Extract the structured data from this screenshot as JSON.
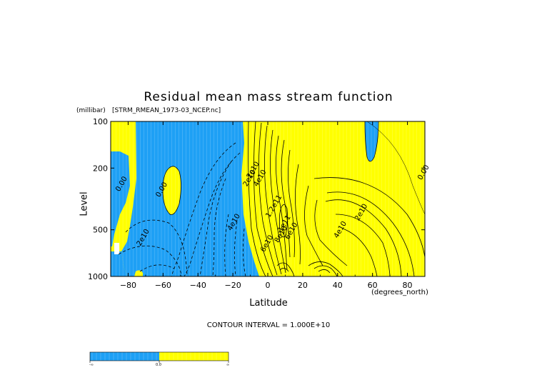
{
  "figure": {
    "title": "Residual mean mass stream function",
    "source_file": "[STRM_RMEAN_1973-03_NCEP.nc]",
    "y_units": "(millibar)",
    "y_label": "Level",
    "x_label": "Latitude",
    "x_units": "(degrees_north)",
    "contour_interval": "CONTOUR INTERVAL = 1.000E+10"
  },
  "colors": {
    "negative": "#1ea0f5",
    "positive": "#ffff00",
    "contour": "#000000",
    "background": "#ffffff"
  },
  "colorbar": {
    "labels": [
      "-∞",
      "0.0",
      "∞"
    ],
    "colors": [
      "#1ea0f5",
      "#ffff00"
    ]
  },
  "chart_data": {
    "type": "contour",
    "title": "Residual mean mass stream function",
    "xlabel": "Latitude",
    "ylabel": "Level",
    "x_ticks": [
      -80,
      -60,
      -40,
      -20,
      0,
      20,
      40,
      60,
      80
    ],
    "x_tick_labels": [
      "−80",
      "−60",
      "−40",
      "−20",
      "0",
      "20",
      "40",
      "60",
      "80"
    ],
    "xlim": [
      -90,
      90
    ],
    "y_ticks": [
      1000,
      500,
      200,
      100
    ],
    "y_tick_labels": [
      "1000",
      "500",
      "200",
      "100"
    ],
    "ylim": [
      1000,
      100
    ],
    "y_scale": "log",
    "contour_interval": 10000000000.0,
    "contour_labels": [
      {
        "text": "0.00",
        "lat": -85,
        "lev": 285
      },
      {
        "text": "0.00",
        "lat": -62,
        "lev": 310
      },
      {
        "text": "2e10",
        "lat": -73,
        "lev": 640
      },
      {
        "text": "2e10",
        "lat": -10,
        "lev": 235
      },
      {
        "text": "4e10",
        "lat": -21,
        "lev": 510
      },
      {
        "text": "2e10",
        "lat": -12,
        "lev": 265
      },
      {
        "text": "4e10",
        "lat": -6,
        "lev": 265
      },
      {
        "text": "6e10",
        "lat": -2,
        "lev": 700
      },
      {
        "text": "1.2e11",
        "lat": 1,
        "lev": 420
      },
      {
        "text": "1e11",
        "lat": 8,
        "lev": 520
      },
      {
        "text": "8e10",
        "lat": 6,
        "lev": 610
      },
      {
        "text": "6e10",
        "lat": 12,
        "lev": 580
      },
      {
        "text": "4e10",
        "lat": 40,
        "lev": 570
      },
      {
        "text": "2e10",
        "lat": 52,
        "lev": 440
      },
      {
        "text": "0.00",
        "lat": 88,
        "lev": 240
      }
    ]
  }
}
